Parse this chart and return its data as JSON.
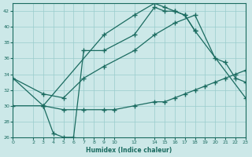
{
  "xlabel": "Humidex (Indice chaleur)",
  "bg_color": "#cce8e8",
  "line_color": "#1a6b60",
  "grid_color": "#99cccc",
  "xlim": [
    0,
    23
  ],
  "ylim": [
    26,
    43
  ],
  "xticks": [
    0,
    2,
    3,
    4,
    5,
    6,
    7,
    8,
    9,
    10,
    12,
    14,
    15,
    16,
    17,
    18,
    19,
    20,
    21,
    22,
    23
  ],
  "yticks": [
    26,
    28,
    30,
    32,
    34,
    36,
    38,
    40,
    42
  ],
  "curve1_x": [
    0,
    3,
    9,
    12,
    14,
    15,
    16,
    17,
    18,
    23
  ],
  "curve1_y": [
    33.5,
    30.0,
    39.0,
    41.5,
    43.0,
    42.5,
    42.0,
    41.5,
    39.5,
    31.0
  ],
  "curve2_x": [
    3,
    4,
    5,
    6,
    7,
    9,
    12,
    14,
    15,
    16,
    17,
    18
  ],
  "curve2_y": [
    30.0,
    26.5,
    26.0,
    26.0,
    37.0,
    37.0,
    39.0,
    42.5,
    42.0,
    42.0,
    41.5,
    39.5
  ],
  "curve3_x": [
    0,
    3,
    5,
    7,
    9,
    12,
    14,
    16,
    18,
    20,
    21,
    22,
    23
  ],
  "curve3_y": [
    33.5,
    31.5,
    31.0,
    33.5,
    35.0,
    37.0,
    39.0,
    40.5,
    41.5,
    36.0,
    35.5,
    33.5,
    33.0
  ],
  "curve4_x": [
    0,
    3,
    5,
    7,
    9,
    10,
    12,
    14,
    15,
    16,
    17,
    18,
    19,
    20,
    21,
    22,
    23
  ],
  "curve4_y": [
    30.0,
    30.0,
    29.5,
    29.5,
    29.5,
    29.5,
    30.0,
    30.5,
    30.5,
    31.0,
    31.5,
    32.0,
    32.5,
    33.0,
    33.5,
    34.0,
    34.5
  ]
}
